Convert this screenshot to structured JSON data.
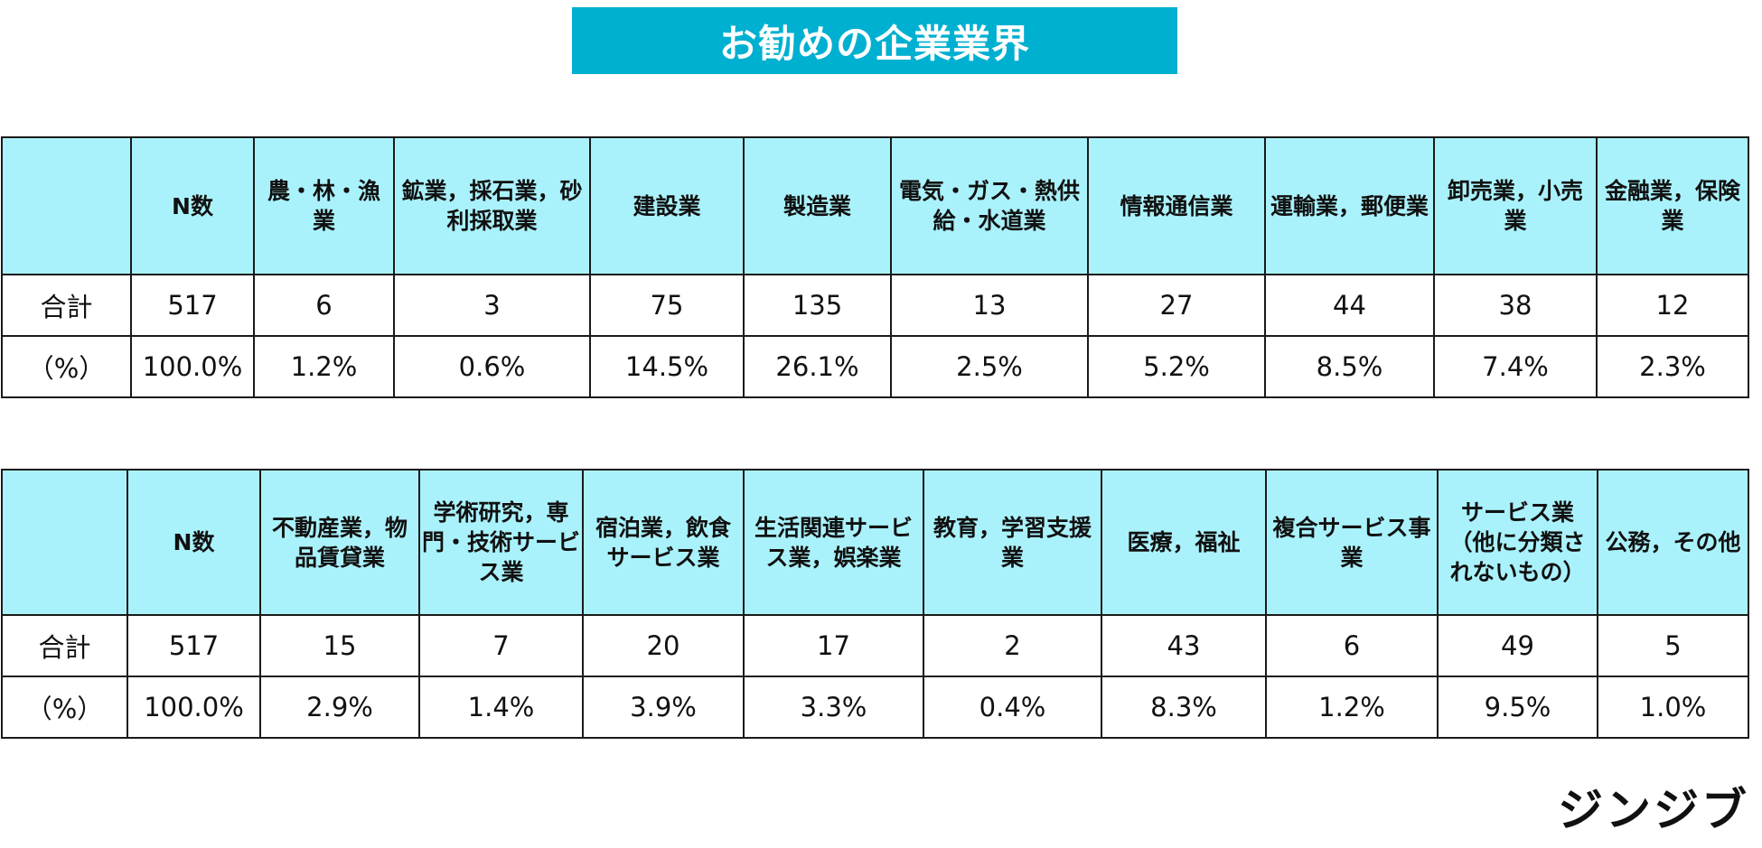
{
  "title": "お勧めの企業業界",
  "logo": "ジンジブ",
  "colors": {
    "banner": "#00b0d0",
    "header_bg": "#aaf2fb",
    "border": "#1a1a1a"
  },
  "chart_data": [
    {
      "type": "table",
      "columns": [
        "",
        "N数",
        "農・林・漁業",
        "鉱業，採石業，砂利採取業",
        "建設業",
        "製造業",
        "電気・ガス・熱供給・水道業",
        "情報通信業",
        "運輸業，郵便業",
        "卸売業，小売業",
        "金融業，保険業"
      ],
      "rows": [
        [
          "合計",
          "517",
          "6",
          "3",
          "75",
          "135",
          "13",
          "27",
          "44",
          "38",
          "12"
        ],
        [
          "（%）",
          "100.0%",
          "1.2%",
          "0.6%",
          "14.5%",
          "26.1%",
          "2.5%",
          "5.2%",
          "8.5%",
          "7.4%",
          "2.3%"
        ]
      ]
    },
    {
      "type": "table",
      "columns": [
        "",
        "N数",
        "不動産業，物品賃貸業",
        "学術研究，専門・技術サービス業",
        "宿泊業，飲食サービス業",
        "生活関連サービス業，娯楽業",
        "教育，学習支援業",
        "医療，福祉",
        "複合サービス事業",
        "サービス業（他に分類されないもの）",
        "公務，その他"
      ],
      "rows": [
        [
          "合計",
          "517",
          "15",
          "7",
          "20",
          "17",
          "2",
          "43",
          "6",
          "49",
          "5"
        ],
        [
          "（%）",
          "100.0%",
          "2.9%",
          "1.4%",
          "3.9%",
          "3.3%",
          "0.4%",
          "8.3%",
          "1.2%",
          "9.5%",
          "1.0%"
        ]
      ]
    }
  ]
}
